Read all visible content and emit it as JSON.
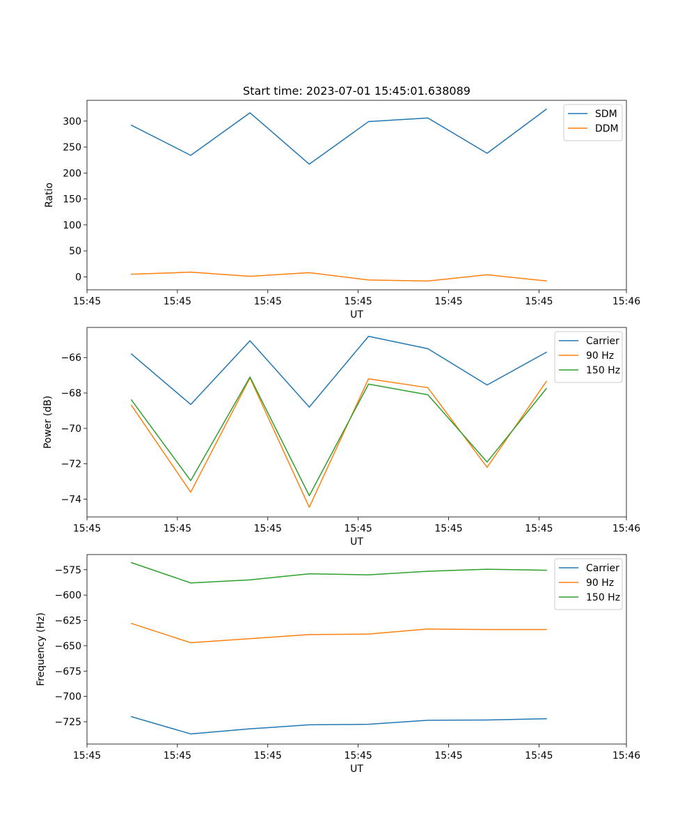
{
  "title": "Start time: 2023-07-01 15:45:01.638089",
  "colors": {
    "c0": "#1f77b4",
    "c1": "#ff7f0e",
    "c2": "#2ca02c"
  },
  "chart_data": [
    {
      "type": "line",
      "title": "Start time: 2023-07-01 15:45:01.638089",
      "xlabel": "UT",
      "ylabel": "Ratio",
      "x": [
        0,
        1,
        2,
        3,
        4,
        5,
        6,
        7
      ],
      "xlim": [
        -0.75,
        8.35
      ],
      "xticks": [
        -0.75,
        0.775,
        2.3,
        3.825,
        5.35,
        6.875,
        8.35
      ],
      "xtick_labels": [
        "15:45",
        "15:45",
        "15:45",
        "15:45",
        "15:45",
        "15:45",
        "15:46"
      ],
      "ylim": [
        -25,
        340
      ],
      "yticks": [
        0,
        50,
        100,
        150,
        200,
        250,
        300
      ],
      "legend": "top-right",
      "series": [
        {
          "name": "SDM",
          "color": "#1f77b4",
          "values": [
            292,
            234,
            316,
            217,
            299,
            306,
            238,
            323
          ]
        },
        {
          "name": "DDM",
          "color": "#ff7f0e",
          "values": [
            5,
            9,
            1,
            8,
            -6,
            -8,
            4,
            -8
          ]
        }
      ]
    },
    {
      "type": "line",
      "title": "",
      "xlabel": "UT",
      "ylabel": "Power (dB)",
      "x": [
        0,
        1,
        2,
        3,
        4,
        5,
        6,
        7
      ],
      "xlim": [
        -0.75,
        8.35
      ],
      "xticks": [
        -0.75,
        0.775,
        2.3,
        3.825,
        5.35,
        6.875,
        8.35
      ],
      "xtick_labels": [
        "15:45",
        "15:45",
        "15:45",
        "15:45",
        "15:45",
        "15:45",
        "15:46"
      ],
      "ylim": [
        -75.0,
        -64.3
      ],
      "yticks": [
        -74,
        -72,
        -70,
        -68,
        -66
      ],
      "ytick_labels": [
        "−74",
        "−72",
        "−70",
        "−68",
        "−66"
      ],
      "legend": "top-right",
      "series": [
        {
          "name": "Carrier",
          "color": "#1f77b4",
          "values": [
            -65.8,
            -68.65,
            -65.05,
            -68.8,
            -64.8,
            -65.5,
            -67.55,
            -65.7
          ]
        },
        {
          "name": "90 Hz",
          "color": "#ff7f0e",
          "values": [
            -68.7,
            -73.6,
            -67.15,
            -74.45,
            -67.2,
            -67.7,
            -72.2,
            -67.35
          ]
        },
        {
          "name": "150 Hz",
          "color": "#2ca02c",
          "values": [
            -68.4,
            -72.95,
            -67.1,
            -73.8,
            -67.5,
            -68.1,
            -71.9,
            -67.75
          ]
        }
      ]
    },
    {
      "type": "line",
      "title": "",
      "xlabel": "UT",
      "ylabel": "Frequency (Hz)",
      "x": [
        0,
        1,
        2,
        3,
        4,
        5,
        6,
        7
      ],
      "xlim": [
        -0.75,
        8.35
      ],
      "xticks": [
        -0.75,
        0.775,
        2.3,
        3.825,
        5.35,
        6.875,
        8.35
      ],
      "xtick_labels": [
        "15:45",
        "15:45",
        "15:45",
        "15:45",
        "15:45",
        "15:45",
        "15:46"
      ],
      "ylim": [
        -747,
        -560
      ],
      "yticks": [
        -725,
        -700,
        -675,
        -650,
        -625,
        -600,
        -575
      ],
      "ytick_labels": [
        "−725",
        "−700",
        "−675",
        "−650",
        "−625",
        "−600",
        "−575"
      ],
      "legend": "top-right",
      "series": [
        {
          "name": "Carrier",
          "color": "#1f77b4",
          "values": [
            -720,
            -737,
            -732,
            -728,
            -727.5,
            -723.5,
            -723.3,
            -722
          ]
        },
        {
          "name": "90 Hz",
          "color": "#ff7f0e",
          "values": [
            -628,
            -647,
            -643,
            -639,
            -638.5,
            -633.5,
            -634,
            -634
          ]
        },
        {
          "name": "150 Hz",
          "color": "#2ca02c",
          "values": [
            -568,
            -588,
            -585,
            -579,
            -580,
            -576.5,
            -574.5,
            -575.5
          ]
        }
      ]
    }
  ]
}
